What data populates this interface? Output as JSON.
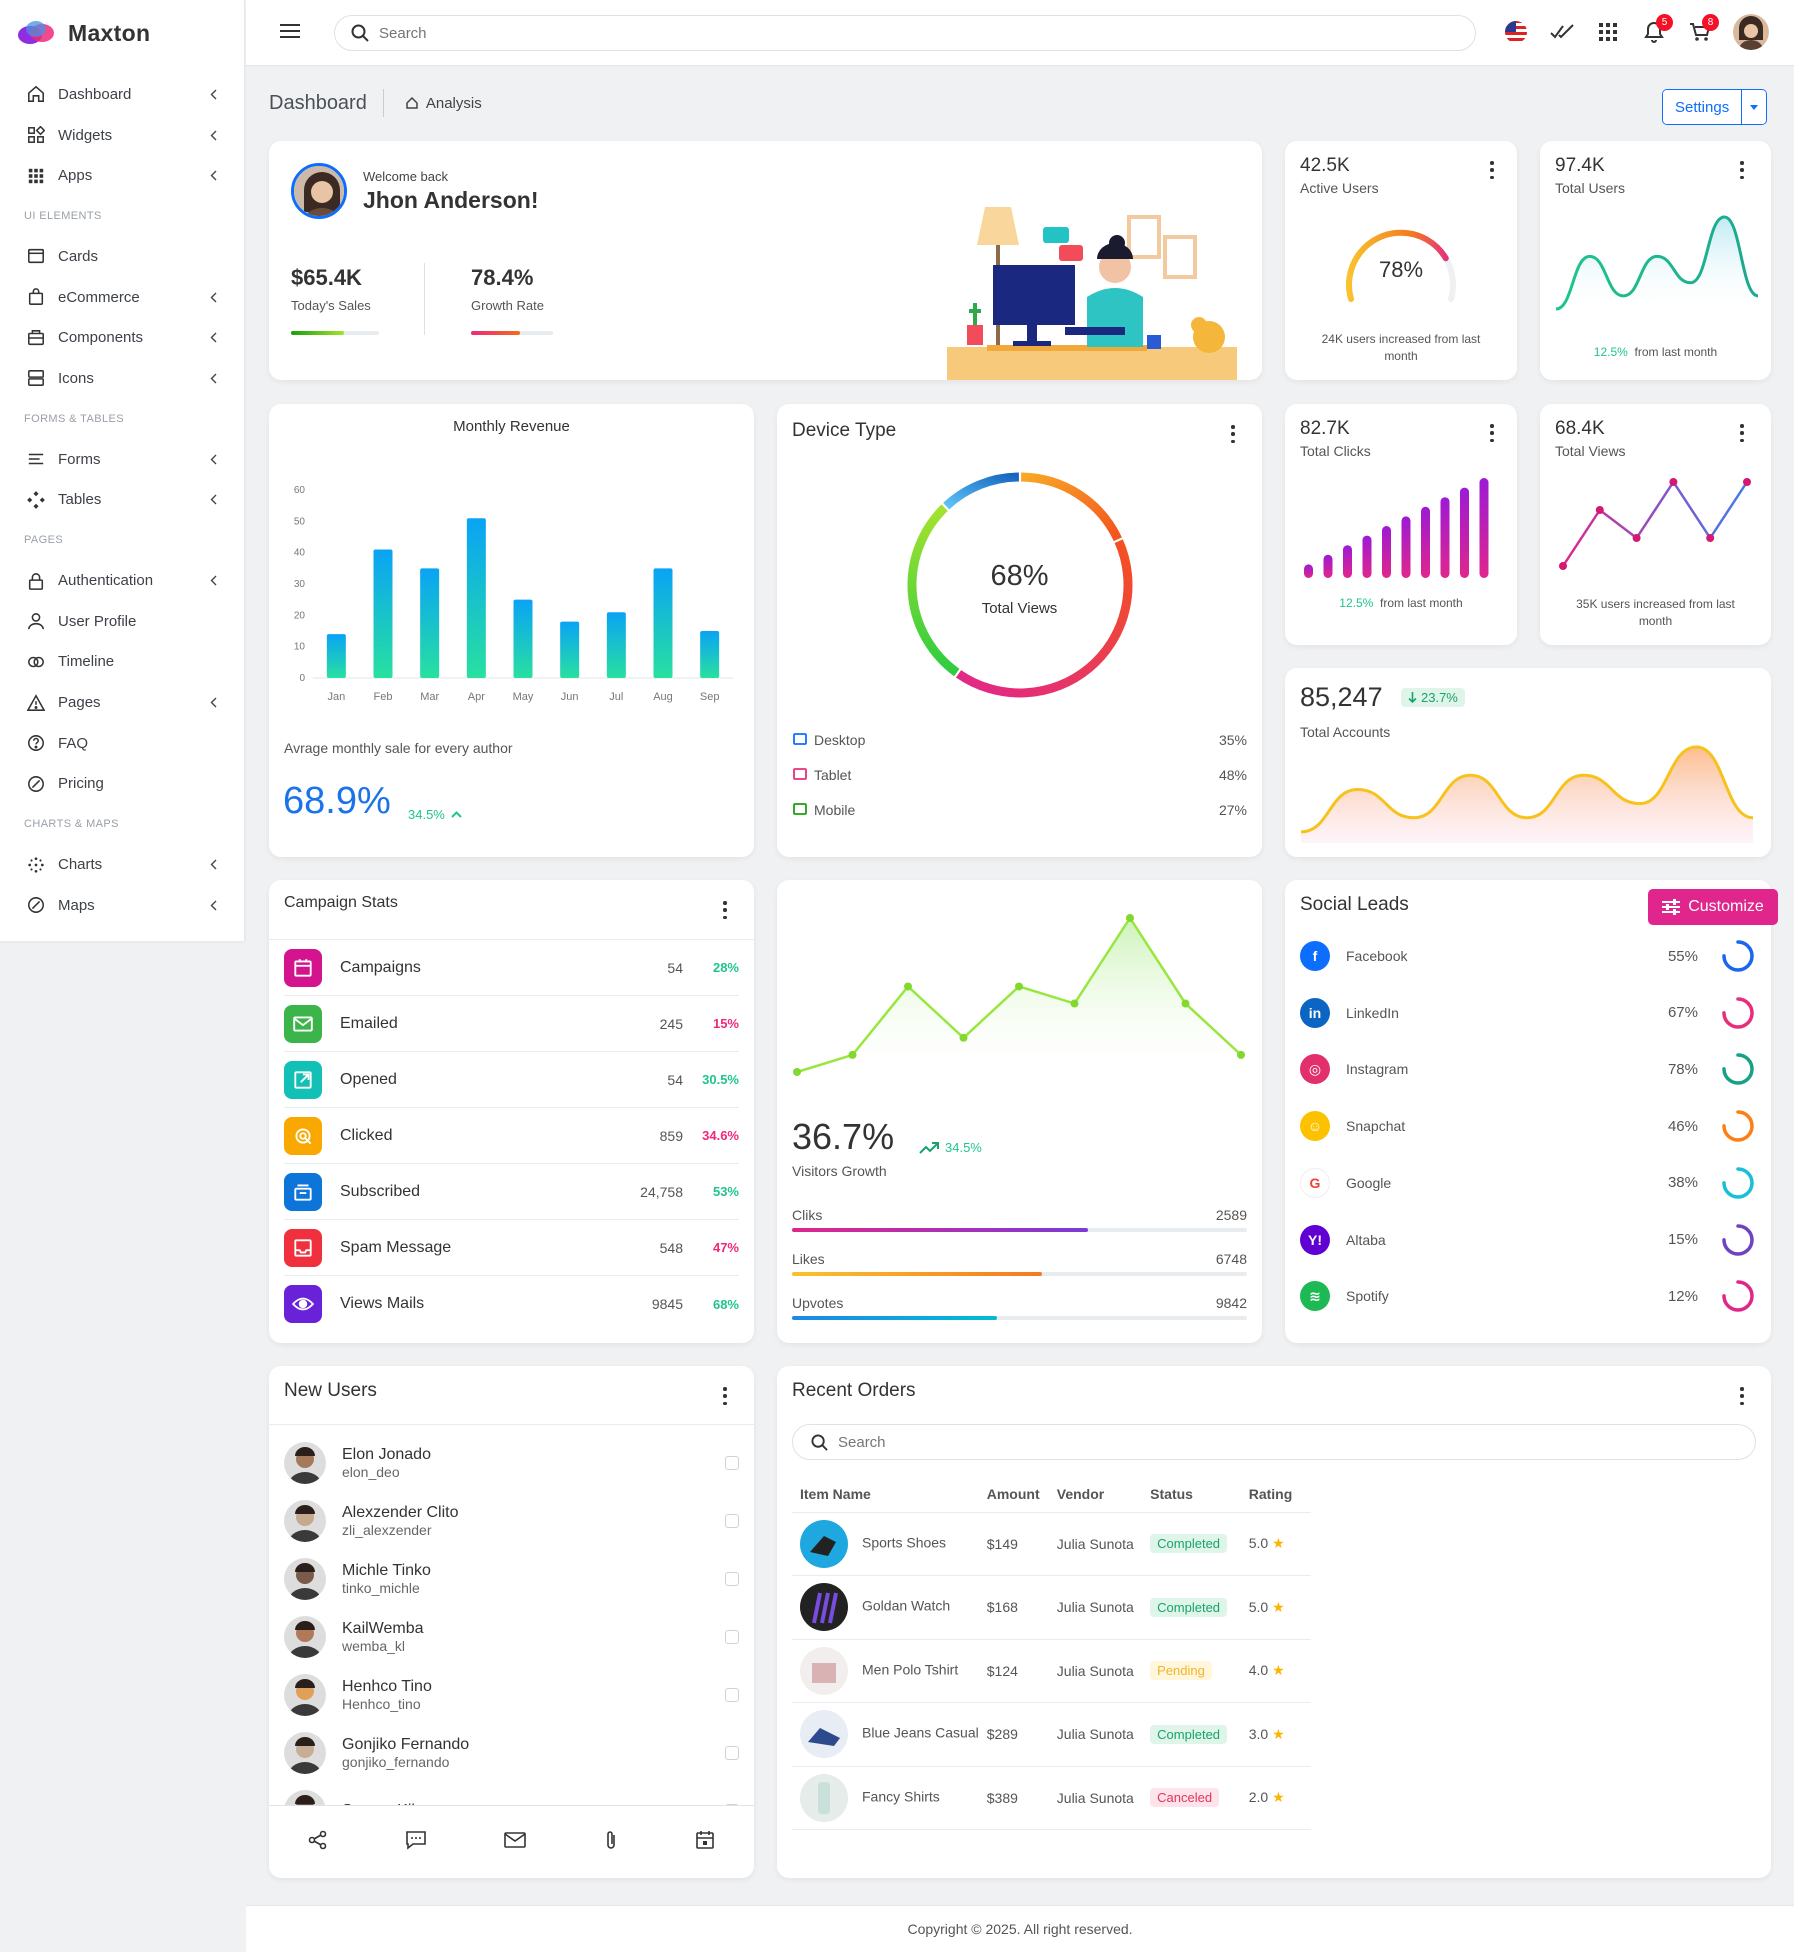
{
  "brand": {
    "name": "Maxton"
  },
  "sidebar": {
    "items": [
      {
        "label": "Dashboard",
        "icon": "home-icon",
        "chev": true
      },
      {
        "label": "Widgets",
        "icon": "widgets-icon",
        "chev": true
      },
      {
        "label": "Apps",
        "icon": "apps-icon",
        "chev": true
      },
      {
        "section": "UI ELEMENTS"
      },
      {
        "label": "Cards",
        "icon": "cards-icon",
        "chev": false
      },
      {
        "label": "eCommerce",
        "icon": "bag-icon",
        "chev": true
      },
      {
        "label": "Components",
        "icon": "components-icon",
        "chev": true
      },
      {
        "label": "Icons",
        "icon": "icons-icon",
        "chev": true
      },
      {
        "section": "FORMS & TABLES"
      },
      {
        "label": "Forms",
        "icon": "forms-icon",
        "chev": true
      },
      {
        "label": "Tables",
        "icon": "tables-icon",
        "chev": true
      },
      {
        "section": "PAGES"
      },
      {
        "label": "Authentication",
        "icon": "lock-icon",
        "chev": true
      },
      {
        "label": "User Profile",
        "icon": "user-icon",
        "chev": false
      },
      {
        "label": "Timeline",
        "icon": "timeline-icon",
        "chev": false
      },
      {
        "label": "Pages",
        "icon": "warning-icon",
        "chev": true
      },
      {
        "label": "FAQ",
        "icon": "help-icon",
        "chev": false
      },
      {
        "label": "Pricing",
        "icon": "tag-icon",
        "chev": false
      },
      {
        "section": "CHARTS & MAPS"
      },
      {
        "label": "Charts",
        "icon": "charts-icon",
        "chev": true
      },
      {
        "label": "Maps",
        "icon": "map-icon",
        "chev": true
      }
    ]
  },
  "topbar": {
    "search_placeholder": "Search",
    "notif_count": "5",
    "cart_count": "8"
  },
  "breadcrumb": {
    "title": "Dashboard",
    "sub": "Analysis",
    "settings": "Settings"
  },
  "welcome": {
    "greet": "Welcome back",
    "name": "Jhon Anderson!",
    "sales_value": "$65.4K",
    "sales_label": "Today's Sales",
    "growth_value": "78.4%",
    "growth_label": "Growth Rate",
    "sales_progress": 0.6,
    "growth_progress": 0.6
  },
  "active_users": {
    "value": "42.5K",
    "label": "Active Users",
    "pct": "78%",
    "pct_value": 78,
    "note": "24K users increased from last month"
  },
  "total_users": {
    "value": "97.4K",
    "label": "Total Users",
    "change": "12.5%",
    "note": "from last month"
  },
  "monthly_revenue": {
    "title": "Monthly Revenue",
    "note": "Avrage monthly sale for every author",
    "big": "68.9%",
    "change": "34.5%"
  },
  "device_type": {
    "title": "Device Type",
    "center_value": "68%",
    "center_label": "Total Views",
    "rows": [
      {
        "name": "Desktop",
        "pct": "35%",
        "color": "#0d6efd"
      },
      {
        "name": "Tablet",
        "pct": "48%",
        "color": "#e72e7a"
      },
      {
        "name": "Mobile",
        "pct": "27%",
        "color": "#17a00e"
      }
    ]
  },
  "total_clicks": {
    "value": "82.7K",
    "label": "Total Clicks",
    "change": "12.5%",
    "note": "from last month"
  },
  "total_views": {
    "value": "68.4K",
    "label": "Total Views",
    "note": "35K users increased from last month"
  },
  "total_accounts": {
    "value": "85,247",
    "change": "23.7%",
    "label": "Total Accounts"
  },
  "campaign": {
    "title": "Campaign Stats",
    "rows": [
      {
        "label": "Campaigns",
        "num": "54",
        "pct": "28%",
        "color": "#d4148f",
        "pct_color": "green",
        "icon": "calendar-icon"
      },
      {
        "label": "Emailed",
        "num": "245",
        "pct": "15%",
        "color": "#3bb54a",
        "pct_color": "red",
        "icon": "mail-icon"
      },
      {
        "label": "Opened",
        "num": "54",
        "pct": "30.5%",
        "color": "#13c0b5",
        "pct_color": "green",
        "icon": "open-icon"
      },
      {
        "label": "Clicked",
        "num": "859",
        "pct": "34.6%",
        "color": "#f9a800",
        "pct_color": "red",
        "icon": "click-icon"
      },
      {
        "label": "Subscribed",
        "num": "24,758",
        "pct": "53%",
        "color": "#0d74d9",
        "pct_color": "green",
        "icon": "subscribe-icon"
      },
      {
        "label": "Spam Message",
        "num": "548",
        "pct": "47%",
        "color": "#f0303c",
        "pct_color": "red",
        "icon": "inbox-icon"
      },
      {
        "label": "Views Mails",
        "num": "9845",
        "pct": "68%",
        "color": "#6a22d8",
        "pct_color": "green",
        "icon": "eye-icon"
      }
    ]
  },
  "visitors": {
    "big": "36.7%",
    "change": "34.5%",
    "label": "Visitors Growth",
    "bars": [
      {
        "name": "Cliks",
        "value": "2589",
        "progress": 0.65,
        "grad": "linear-gradient(90deg,#e0268c,#7c3ad6)"
      },
      {
        "name": "Likes",
        "value": "6748",
        "progress": 0.55,
        "grad": "linear-gradient(90deg,#f9c22e,#f47a20)"
      },
      {
        "name": "Upvotes",
        "value": "9842",
        "progress": 0.45,
        "grad": "linear-gradient(90deg,#1e88e5,#00bcd4)"
      }
    ]
  },
  "social": {
    "title": "Social Leads",
    "customize": "Customize",
    "rows": [
      {
        "name": "Facebook",
        "pct": "55%",
        "value": 55,
        "color": "#0d6efd",
        "ring": "#1a66f0",
        "icon": "facebook-icon"
      },
      {
        "name": "LinkedIn",
        "pct": "67%",
        "value": 67,
        "color": "#0a66c2",
        "ring": "#e72e7a",
        "icon": "linkedin-icon"
      },
      {
        "name": "Instagram",
        "pct": "78%",
        "value": 78,
        "color": "#e1306c",
        "ring": "#17a085",
        "icon": "instagram-icon"
      },
      {
        "name": "Snapchat",
        "pct": "46%",
        "value": 46,
        "color": "#fcc200",
        "ring": "#fd7e14",
        "icon": "snapchat-icon"
      },
      {
        "name": "Google",
        "pct": "38%",
        "value": 38,
        "color": "#ea4335",
        "ring": "#17c0d8",
        "icon": "google-icon"
      },
      {
        "name": "Altaba",
        "pct": "15%",
        "value": 15,
        "color": "#6001d2",
        "ring": "#6f42c1",
        "icon": "yahoo-icon"
      },
      {
        "name": "Spotify",
        "pct": "12%",
        "value": 12,
        "color": "#1db954",
        "ring": "#e0268c",
        "icon": "spotify-icon"
      }
    ]
  },
  "new_users": {
    "title": "New Users",
    "rows": [
      {
        "name": "Elon Jonado",
        "handle": "elon_deo"
      },
      {
        "name": "Alexzender Clito",
        "handle": "zli_alexzender"
      },
      {
        "name": "Michle Tinko",
        "handle": "tinko_michle"
      },
      {
        "name": "KailWemba",
        "handle": "wemba_kl"
      },
      {
        "name": "Henhco Tino",
        "handle": "Henhco_tino"
      },
      {
        "name": "Gonjiko Fernando",
        "handle": "gonjiko_fernando"
      },
      {
        "name": "Specer Kilo",
        "handle": ""
      }
    ]
  },
  "orders": {
    "title": "Recent Orders",
    "search_placeholder": "Search",
    "headers": [
      "Item Name",
      "Amount",
      "Vendor",
      "Status",
      "Rating"
    ],
    "rows": [
      {
        "item": "Sports Shoes",
        "amount": "$149",
        "vendor": "Julia Sunota",
        "status": "Completed",
        "rating": "5.0"
      },
      {
        "item": "Goldan Watch",
        "amount": "$168",
        "vendor": "Julia Sunota",
        "status": "Completed",
        "rating": "5.0"
      },
      {
        "item": "Men Polo Tshirt",
        "amount": "$124",
        "vendor": "Julia Sunota",
        "status": "Pending",
        "rating": "4.0"
      },
      {
        "item": "Blue Jeans Casual",
        "amount": "$289",
        "vendor": "Julia Sunota",
        "status": "Completed",
        "rating": "3.0"
      },
      {
        "item": "Fancy Shirts",
        "amount": "$389",
        "vendor": "Julia Sunota",
        "status": "Canceled",
        "rating": "2.0"
      }
    ]
  },
  "footer": {
    "text": "Copyright © 2025. All right reserved."
  },
  "chart_data": [
    {
      "type": "bar",
      "title": "Monthly Revenue",
      "categories": [
        "Jan",
        "Feb",
        "Mar",
        "Apr",
        "May",
        "Jun",
        "Jul",
        "Aug",
        "Sep"
      ],
      "values": [
        14,
        41,
        35,
        51,
        25,
        18,
        21,
        35,
        15
      ],
      "ylim": [
        0,
        60
      ],
      "yticks": [
        0,
        10,
        20,
        30,
        40,
        50,
        60
      ]
    },
    {
      "type": "pie",
      "title": "Device Type",
      "categories": [
        "Desktop",
        "Tablet",
        "Mobile"
      ],
      "values": [
        35,
        48,
        27
      ]
    },
    {
      "type": "area",
      "series": [
        {
          "name": "Total Users",
          "values": [
            2,
            6,
            3,
            6,
            4,
            9,
            3
          ]
        }
      ]
    },
    {
      "type": "bar",
      "series": [
        {
          "name": "Total Clicks",
          "values": [
            1,
            2,
            3,
            4,
            5,
            6,
            7,
            8,
            9,
            10
          ]
        }
      ]
    },
    {
      "type": "line",
      "series": [
        {
          "name": "Total Views",
          "values": [
            2,
            6,
            4,
            8,
            4,
            8
          ]
        }
      ]
    },
    {
      "type": "area",
      "series": [
        {
          "name": "Total Accounts",
          "values": [
            1,
            4,
            2,
            5,
            2,
            5,
            3,
            7,
            2
          ]
        }
      ]
    },
    {
      "type": "area",
      "series": [
        {
          "name": "Visitors Growth",
          "values": [
            1,
            2,
            6,
            3,
            6,
            5,
            10,
            5,
            2
          ]
        }
      ]
    }
  ]
}
